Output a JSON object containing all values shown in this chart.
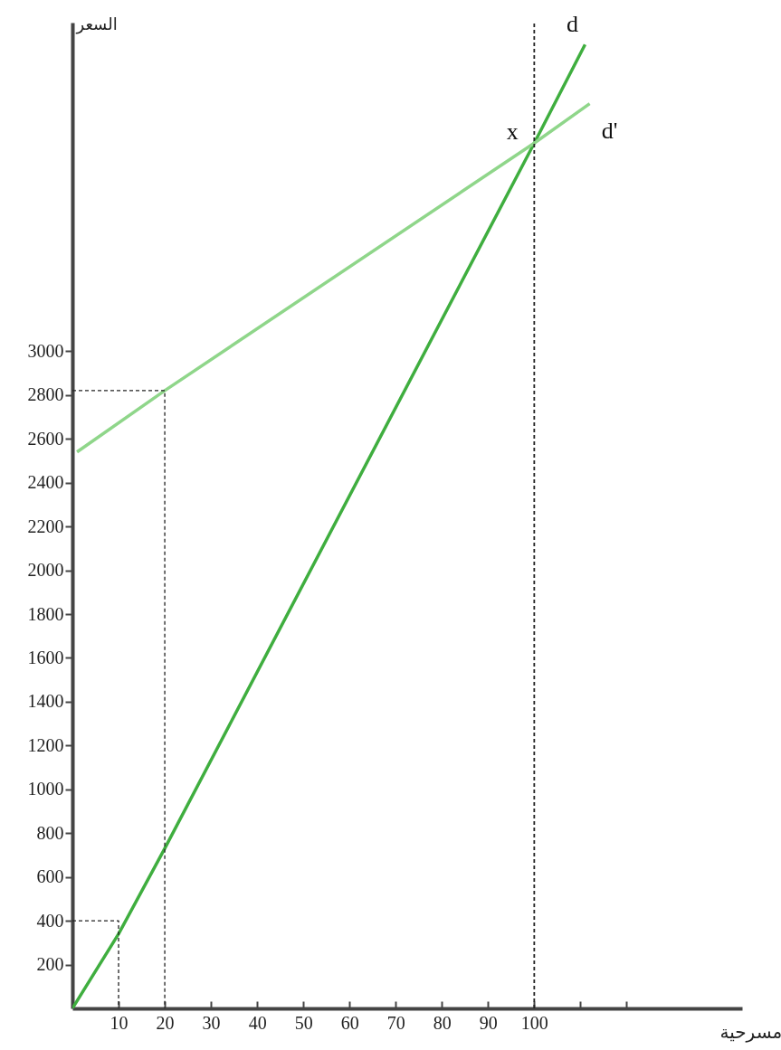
{
  "chart_data": {
    "type": "line",
    "xlabel": "مسرحية",
    "ylabel": "السعر",
    "xlim": [
      0,
      145
    ],
    "ylim": [
      0,
      4500
    ],
    "xticks": [
      10,
      20,
      30,
      40,
      50,
      60,
      70,
      80,
      90,
      100,
      {
        "value": 110,
        "label": null
      },
      {
        "value": 120,
        "label": null
      }
    ],
    "yticks": [
      200,
      400,
      600,
      800,
      1000,
      1200,
      1400,
      1600,
      1800,
      2000,
      2200,
      2400,
      2600,
      2800,
      3000
    ],
    "series": [
      {
        "color": "#3fae3f",
        "x": [
          0,
          10,
          20,
          100,
          111
        ],
        "values": [
          0,
          340,
          730,
          3950,
          4400
        ]
      },
      {
        "color": "#8fd68a",
        "x": [
          1,
          20,
          100,
          112
        ],
        "values": [
          2540,
          2820,
          3950,
          4130
        ]
      },
      {
        "color": "#222222",
        "line_style": "dashed",
        "x": [
          0,
          10,
          10
        ],
        "values": [
          400,
          400,
          0
        ]
      },
      {
        "color": "#222222",
        "line_style": "dashed",
        "x": [
          0,
          20,
          20
        ],
        "values": [
          2820,
          2820,
          0
        ]
      }
    ],
    "ref_lines": [
      {
        "axis": "x",
        "value": 100,
        "color": "#222222",
        "line_style": "dashed"
      }
    ],
    "annotations": [
      {
        "text": "d",
        "x": 111,
        "y": 4400
      },
      {
        "text": "d'",
        "x": 112,
        "y": 4130
      },
      {
        "text": "x",
        "x": 100,
        "y": 3950
      }
    ]
  }
}
